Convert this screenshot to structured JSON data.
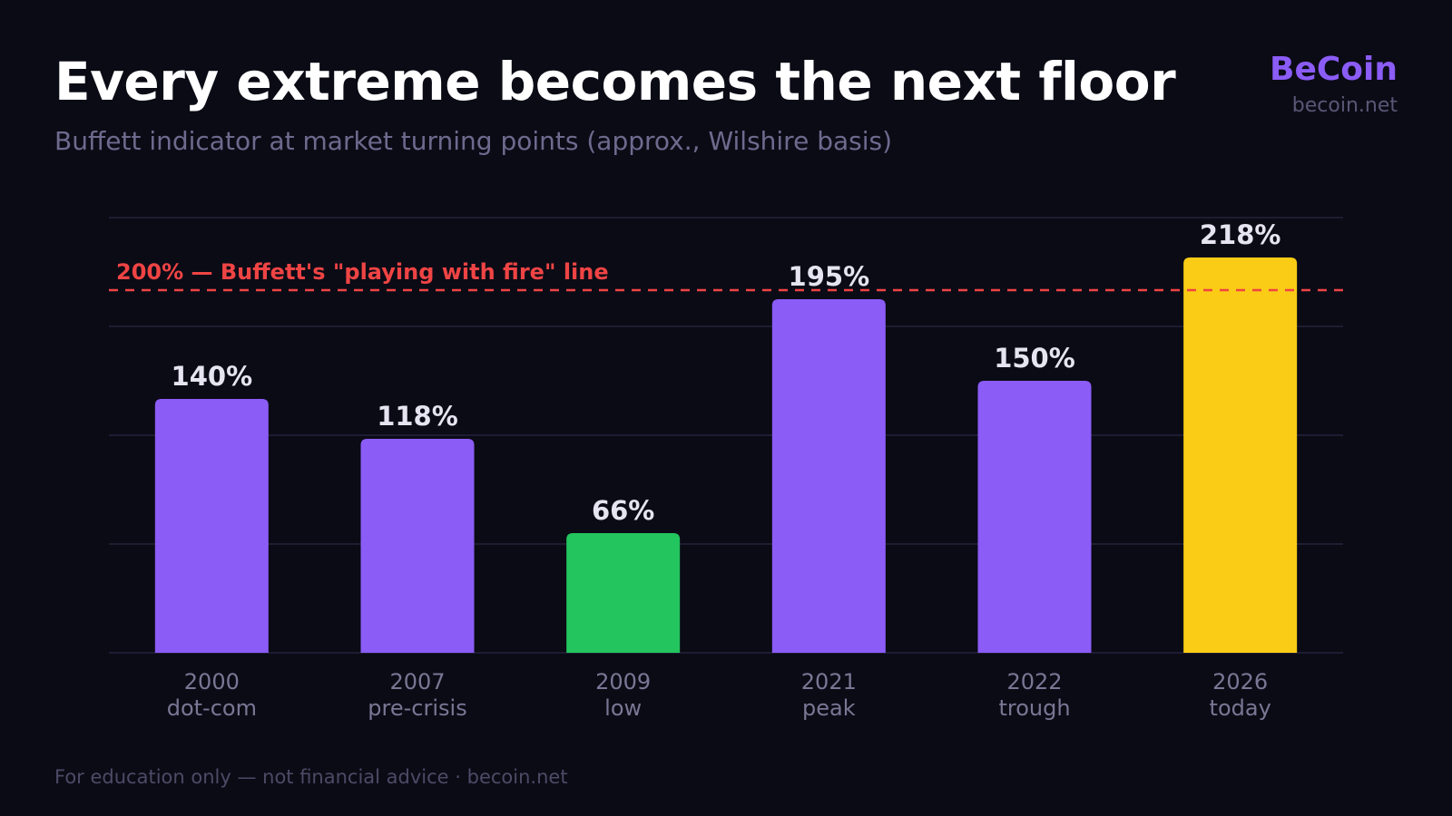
{
  "header": {
    "title": "Every extreme becomes the next floor",
    "subtitle": "Buffett indicator at market turning points (approx., Wilshire basis)"
  },
  "brand": {
    "name": "BeCoin",
    "url": "becoin.net"
  },
  "footer": {
    "disclaimer": "For education only — not financial advice · becoin.net"
  },
  "chart_data": {
    "type": "bar",
    "categories": [
      "2000",
      "2007",
      "2009",
      "2021",
      "2022",
      "2026"
    ],
    "category_sublabels": [
      "dot-com",
      "pre-crisis",
      "low",
      "peak",
      "trough",
      "today"
    ],
    "values": [
      140,
      118,
      66,
      195,
      150,
      218
    ],
    "data_labels": [
      "140%",
      "118%",
      "66%",
      "195%",
      "150%",
      "218%"
    ],
    "bar_colors": [
      "#8b5cf6",
      "#8b5cf6",
      "#22c55e",
      "#8b5cf6",
      "#8b5cf6",
      "#facc15"
    ],
    "ylim": [
      0,
      240
    ],
    "gridline_step": 60,
    "grid": true,
    "reference_line": {
      "value": 200,
      "label": "200% — Buffett's \"playing with fire\" line",
      "color": "#ef4444",
      "style": "dashed"
    },
    "colors": {
      "background": "#0b0b16",
      "grid": "#24233a",
      "data_label": "#e5e4f0",
      "tick_label": "#7a7694"
    }
  }
}
